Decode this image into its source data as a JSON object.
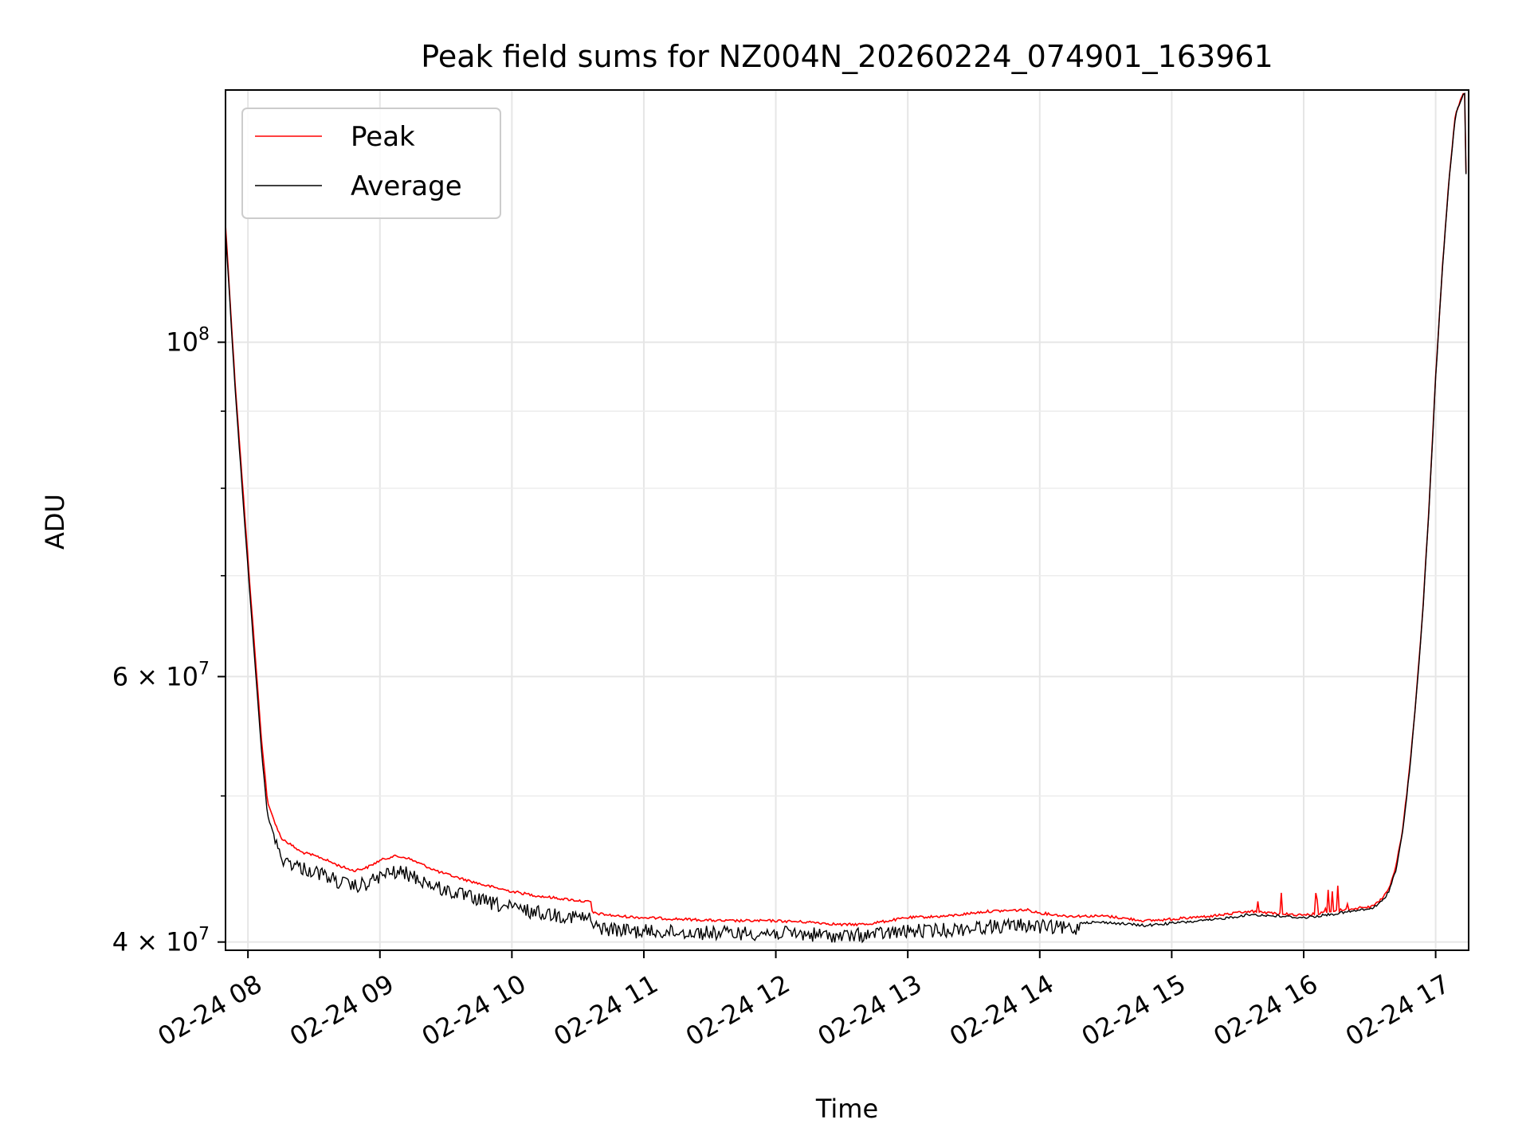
{
  "chart_data": {
    "type": "line",
    "title": "Peak field sums for NZ004N_20260224_074901_163961",
    "xlabel": "Time",
    "ylabel": "ADU",
    "yscale": "log",
    "ylim": [
      39500000,
      147000000
    ],
    "xlim_hours": [
      7.83,
      17.25
    ],
    "grid": true,
    "legend_position": "upper-left",
    "x_ticks": [
      {
        "value": 8,
        "label": "02-24 08"
      },
      {
        "value": 9,
        "label": "02-24 09"
      },
      {
        "value": 10,
        "label": "02-24 10"
      },
      {
        "value": 11,
        "label": "02-24 11"
      },
      {
        "value": 12,
        "label": "02-24 12"
      },
      {
        "value": 13,
        "label": "02-24 13"
      },
      {
        "value": 14,
        "label": "02-24 14"
      },
      {
        "value": 15,
        "label": "02-24 15"
      },
      {
        "value": 16,
        "label": "02-24 16"
      },
      {
        "value": 17,
        "label": "02-24 17"
      }
    ],
    "y_major_ticks": [
      {
        "value": 40000000,
        "base": "4 × 10",
        "exp": "7"
      },
      {
        "value": 60000000,
        "base": "6 × 10",
        "exp": "7"
      },
      {
        "value": 100000000,
        "base": "10",
        "exp": "8"
      }
    ],
    "y_minor_ticks": [
      50000000,
      70000000,
      80000000,
      90000000
    ],
    "series": [
      {
        "name": "Peak",
        "color": "#ff0000",
        "x": [
          7.83,
          7.9,
          8.0,
          8.1,
          8.15,
          8.25,
          8.4,
          8.55,
          8.7,
          8.8,
          8.9,
          9.0,
          9.1,
          9.2,
          9.3,
          9.45,
          9.6,
          9.8,
          10.0,
          10.2,
          10.4,
          10.6,
          10.61,
          10.8,
          11.0,
          11.3,
          11.6,
          12.0,
          12.3,
          12.5,
          12.7,
          13.0,
          13.3,
          13.6,
          13.9,
          14.0,
          14.2,
          14.5,
          14.8,
          15.0,
          15.3,
          15.6,
          15.9,
          16.0,
          16.2,
          16.4,
          16.5,
          16.55,
          16.6,
          16.65,
          16.7,
          16.75,
          16.8,
          16.85,
          16.9,
          16.95,
          17.0,
          17.05,
          17.1,
          17.15,
          17.2,
          17.22,
          17.23
        ],
        "y": [
          120000000,
          95000000,
          72000000,
          55000000,
          49500000,
          47000000,
          46000000,
          45600000,
          45000000,
          44700000,
          44900000,
          45400000,
          45700000,
          45600000,
          45200000,
          44600000,
          44200000,
          43700000,
          43300000,
          43000000,
          42800000,
          42600000,
          41900000,
          41700000,
          41600000,
          41500000,
          41400000,
          41400000,
          41300000,
          41150000,
          41200000,
          41600000,
          41700000,
          42000000,
          42100000,
          41900000,
          41700000,
          41700000,
          41400000,
          41500000,
          41700000,
          42000000,
          41800000,
          41750000,
          41950000,
          42200000,
          42300000,
          42500000,
          42900000,
          43600000,
          45000000,
          47600000,
          52000000,
          58000000,
          66000000,
          78000000,
          95000000,
          112000000,
          128000000,
          142000000,
          146000000,
          146500000,
          130000000
        ]
      },
      {
        "name": "Average",
        "color": "#000000",
        "x": [
          7.83,
          7.9,
          8.0,
          8.1,
          8.15,
          8.25,
          8.4,
          8.55,
          8.7,
          8.8,
          8.9,
          9.0,
          9.1,
          9.2,
          9.3,
          9.45,
          9.6,
          9.8,
          10.0,
          10.2,
          10.4,
          10.6,
          10.61,
          10.8,
          11.0,
          11.3,
          11.6,
          12.0,
          12.3,
          12.5,
          12.7,
          13.0,
          13.3,
          13.6,
          13.9,
          14.0,
          14.2,
          14.5,
          14.8,
          15.0,
          15.3,
          15.6,
          15.9,
          16.0,
          16.2,
          16.4,
          16.5,
          16.55,
          16.6,
          16.65,
          16.7,
          16.75,
          16.8,
          16.85,
          16.9,
          16.95,
          17.0,
          17.05,
          17.1,
          17.15,
          17.2,
          17.22,
          17.23
        ],
        "y": [
          119000000,
          94000000,
          71000000,
          54000000,
          48500000,
          46000000,
          45300000,
          44900000,
          44300000,
          44000000,
          44200000,
          44700000,
          45000000,
          44900000,
          44500000,
          43900000,
          43500000,
          43000000,
          42600000,
          42300000,
          42100000,
          41900000,
          41400000,
          41200000,
          41100000,
          41050000,
          41000000,
          41000000,
          40900000,
          40800000,
          40900000,
          41100000,
          41200000,
          41400000,
          41500000,
          41400000,
          41300000,
          41300000,
          41100000,
          41250000,
          41450000,
          41800000,
          41650000,
          41600000,
          41800000,
          42050000,
          42150000,
          42350000,
          42700000,
          43400000,
          44800000,
          47400000,
          51800000,
          57800000,
          65800000,
          77800000,
          94800000,
          111800000,
          127800000,
          141800000,
          145800000,
          146300000,
          129500000
        ]
      }
    ]
  }
}
